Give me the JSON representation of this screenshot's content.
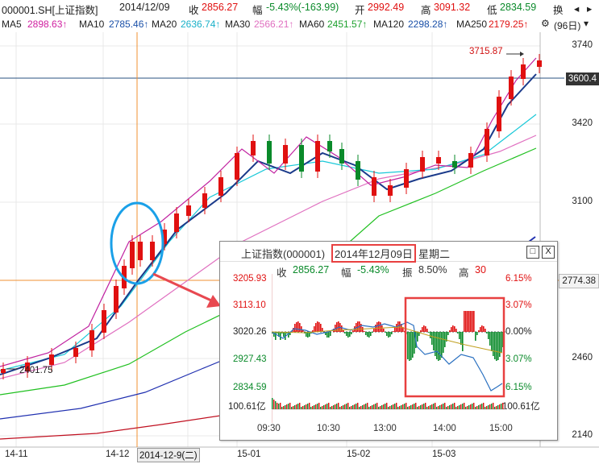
{
  "header": {
    "code": "000001.SH[上证指数]",
    "date": "2014/12/09",
    "close_label": "收",
    "close_value": "2856.27",
    "change_label": "幅",
    "change_value": "-5.43%(-163.99)",
    "open_label": "开",
    "open_value": "2992.49",
    "high_label": "高",
    "high_value": "3091.32",
    "low_label": "低",
    "low_value": "2834.59",
    "turnover_label": "换"
  },
  "ma_bar": {
    "ma5_label": "MA5",
    "ma5_value": "2898.63↑",
    "ma10_label": "MA10",
    "ma10_value": "2785.46↑",
    "ma20_label": "MA20",
    "ma20_value": "2636.74↑",
    "ma30_label": "MA30",
    "ma30_value": "2566.21↑",
    "ma60_label": "MA60",
    "ma60_value": "2451.57↑",
    "ma120_label": "MA120",
    "ma120_value": "2298.28↑",
    "ma250_label": "MA250",
    "ma250_value": "2179.25↑",
    "period": "(96日)"
  },
  "y_axis": {
    "t3740": "3740",
    "t3600": "3600.4",
    "t3420": "3420",
    "t3100": "3100",
    "t2774": "2774.38",
    "t2460": "2460",
    "t2140": "2140"
  },
  "x_axis": {
    "l1411": "14-11",
    "l1412": "14-12",
    "cursor_date": "2014-12-9(二)",
    "l1501": "15-01",
    "l1502": "15-02",
    "l1503": "15-03"
  },
  "annotations": {
    "high_point": "3715.87",
    "low_point": "2401.75"
  },
  "popup": {
    "title": "上证指数(000001)",
    "date": "2014年12月09日",
    "weekday": "星期二",
    "close_label": "收",
    "close_value": "2856.27",
    "change_label": "幅",
    "change_value": "-5.43%",
    "amp_label": "振",
    "amp_value": "8.50%",
    "high_label": "高",
    "high_value": "30",
    "left_scale": [
      "3205.93",
      "3113.10",
      "3020.26",
      "2927.43",
      "2834.59",
      "100.61亿"
    ],
    "right_scale": [
      "6.15%",
      "3.07%",
      "0.00%",
      "3.07%",
      "6.15%",
      "100.61亿"
    ],
    "times": [
      "09:30",
      "10:30",
      "13:00",
      "14:00",
      "15:00"
    ],
    "btn_restore": "□",
    "btn_close": "X"
  },
  "colors": {
    "up": "#e01010",
    "down": "#0a8a2a",
    "highlight": "#e84040",
    "circle": "#1aa0e8",
    "crosshair": "#f09030"
  }
}
